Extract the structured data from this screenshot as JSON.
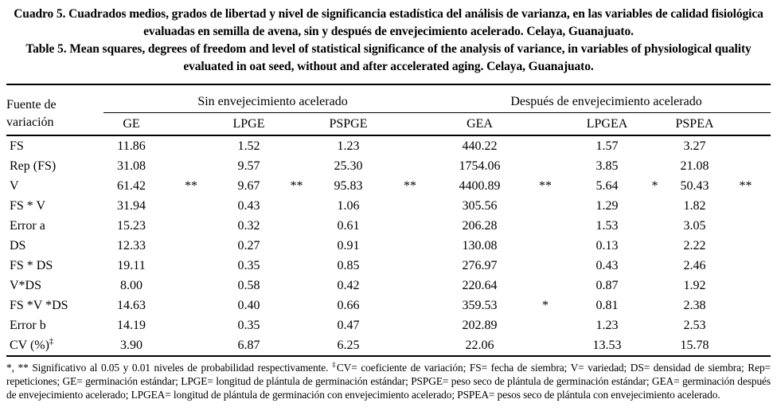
{
  "captions": {
    "spanish": "Cuadro 5. Cuadrados medios, grados de libertad y nivel de significancia estadística del análisis de varianza, en las variables de calidad fisiológica evaluadas en semilla de avena, sin y después de envejecimiento acelerado. Celaya, Guanajuato.",
    "english": "Table 5. Mean squares, degrees of freedom and level of statistical significance of the analysis of variance, in variables of physiological quality evaluated in oat seed, without and after accelerated aging. Celaya, Guanajuato."
  },
  "table": {
    "row_header": "Fuente de variación",
    "groups": [
      "Sin envejecimiento acelerado",
      "Después de envejecimiento acelerado"
    ],
    "columns": [
      "GE",
      "LPGE",
      "PSPGE",
      "GEA",
      "LPGEA",
      "PSPEA"
    ],
    "rows": [
      {
        "label": "FS",
        "values": [
          "11.86",
          "1.52",
          "1.23",
          "440.22",
          "1.57",
          "3.27"
        ],
        "sig": [
          "",
          "",
          "",
          "",
          "",
          ""
        ]
      },
      {
        "label": "Rep (FS)",
        "values": [
          "31.08",
          "9.57",
          "25.30",
          "1754.06",
          "3.85",
          "21.08"
        ],
        "sig": [
          "",
          "",
          "",
          "",
          "",
          ""
        ]
      },
      {
        "label": "V",
        "values": [
          "61.42",
          "9.67",
          "95.83",
          "4400.89",
          "5.64",
          "50.43"
        ],
        "sig": [
          "**",
          "**",
          "**",
          "**",
          "*",
          "**"
        ]
      },
      {
        "label": "FS * V",
        "values": [
          "31.94",
          "0.43",
          "1.06",
          "305.56",
          "1.29",
          "1.82"
        ],
        "sig": [
          "",
          "",
          "",
          "",
          "",
          ""
        ]
      },
      {
        "label": "Error a",
        "values": [
          "15.23",
          "0.32",
          "0.61",
          "206.28",
          "1.53",
          "3.05"
        ],
        "sig": [
          "",
          "",
          "",
          "",
          "",
          ""
        ]
      },
      {
        "label": "DS",
        "values": [
          "12.33",
          "0.27",
          "0.91",
          "130.08",
          "0.13",
          "2.22"
        ],
        "sig": [
          "",
          "",
          "",
          "",
          "",
          ""
        ]
      },
      {
        "label": "FS * DS",
        "values": [
          "19.11",
          "0.35",
          "0.85",
          "276.97",
          "0.43",
          "2.46"
        ],
        "sig": [
          "",
          "",
          "",
          "",
          "",
          ""
        ]
      },
      {
        "label": "V*DS",
        "values": [
          "8.00",
          "0.58",
          "0.42",
          "220.64",
          "0.87",
          "1.92"
        ],
        "sig": [
          "",
          "",
          "",
          "",
          "",
          ""
        ]
      },
      {
        "label": "FS *V *DS",
        "values": [
          "14.63",
          "0.40",
          "0.66",
          "359.53",
          "0.81",
          "2.38"
        ],
        "sig": [
          "",
          "",
          "",
          "*",
          "",
          ""
        ]
      },
      {
        "label": "Error b",
        "values": [
          "14.19",
          "0.35",
          "0.47",
          "202.89",
          "1.23",
          "2.53"
        ],
        "sig": [
          "",
          "",
          "",
          "",
          "",
          ""
        ]
      },
      {
        "label": "CV (%)",
        "label_sup": "‡",
        "values": [
          "3.90",
          "6.87",
          "6.25",
          "22.06",
          "13.53",
          "15.78"
        ],
        "sig": [
          "",
          "",
          "",
          "",
          "",
          ""
        ]
      }
    ]
  },
  "footnote": {
    "significance": "*, ** Significativo al 0.05 y 0.01 niveles de probabilidad respectivamente. ",
    "dagger": "‡",
    "abbreviations": "CV= coeficiente de variación; FS= fecha de siembra; V= variedad; DS= densidad de siembra; Rep= repeticiones; GE= germinación estándar; LPGE= longitud de plántula de germinación estándar; PSPGE= peso seco de plántula de germinación estándar; GEA= germinación después de envejecimiento acelerado; LPGEA= longitud de plántula de germinación con envejecimiento acelerado; PSPEA= pesos seco de plántula con envejecimiento acelerado."
  }
}
